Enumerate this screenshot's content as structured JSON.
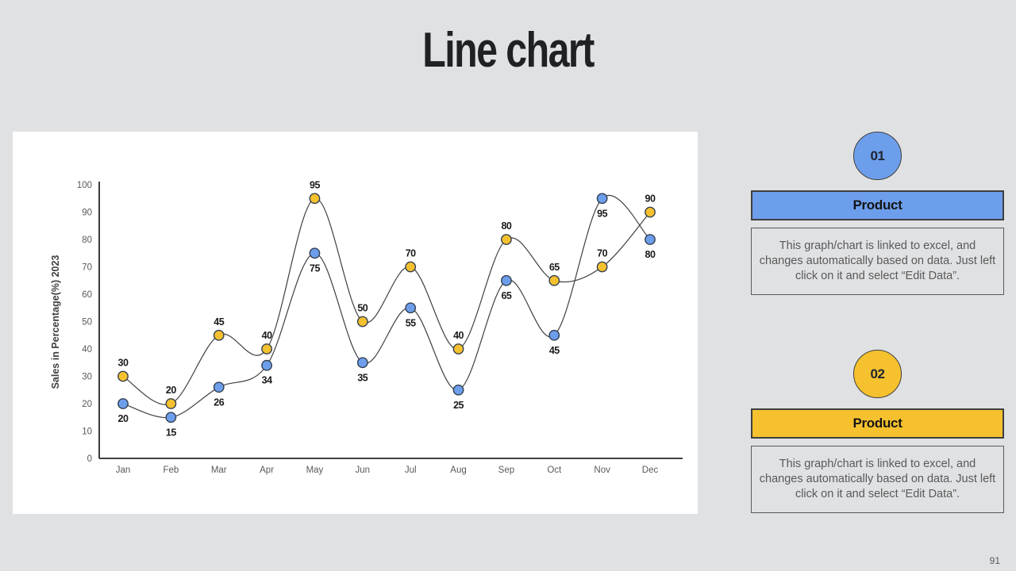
{
  "slide": {
    "title": "Line chart",
    "page_number": "91",
    "background": "#E0E1E3"
  },
  "chart_data": {
    "type": "line",
    "title": "",
    "xlabel": "",
    "ylabel": "Sales in Percentage(%) 2023",
    "ylim": [
      0,
      100
    ],
    "ytick_step": 10,
    "grid": false,
    "legend": "none",
    "panel_background": "#FFFFFF",
    "line_color": "#404040",
    "marker_outline": "#333F50",
    "categories": [
      "Jan",
      "Feb",
      "Mar",
      "Apr",
      "May",
      "Jun",
      "Jul",
      "Aug",
      "Sep",
      "Oct",
      "Nov",
      "Dec"
    ],
    "series": [
      {
        "name": "Product 01",
        "marker_color": "#6D9EEB",
        "label_position": "below",
        "values": [
          20,
          15,
          26,
          34,
          75,
          35,
          55,
          25,
          65,
          45,
          95,
          80
        ]
      },
      {
        "name": "Product 02",
        "marker_color": "#F5C12E",
        "label_position": "above",
        "values": [
          30,
          20,
          45,
          40,
          95,
          50,
          70,
          40,
          80,
          65,
          70,
          90
        ]
      }
    ]
  },
  "cards": [
    {
      "number": "01",
      "title": "Product",
      "accent": "#6D9EEB",
      "description": "This graph/chart is linked to excel, and changes automatically based on data. Just left click on it and select “Edit Data”."
    },
    {
      "number": "02",
      "title": "Product",
      "accent": "#F5C12E",
      "description": "This graph/chart is linked to excel, and changes automatically based on data. Just left click on it and select “Edit Data”."
    }
  ]
}
